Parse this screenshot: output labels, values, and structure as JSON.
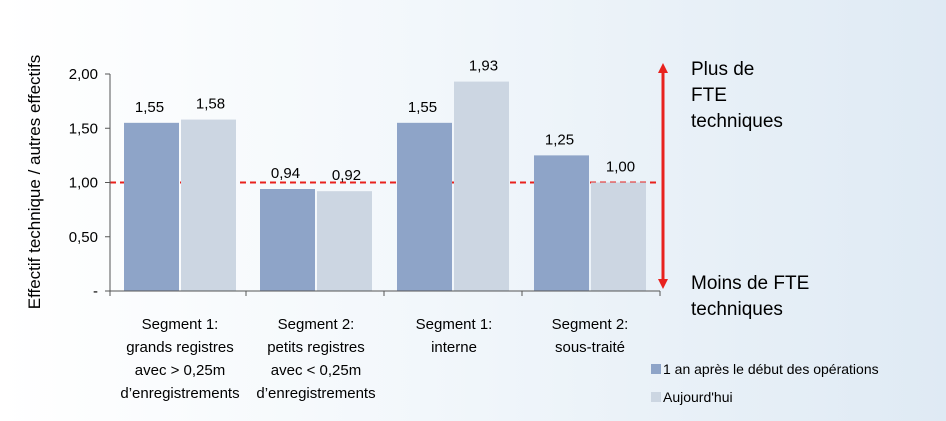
{
  "chart_data": {
    "type": "bar",
    "ylabel": "Effectif technique / autres effectifs",
    "ylim": [
      0,
      2.0
    ],
    "yticks": [
      {
        "value": 0,
        "label": "-"
      },
      {
        "value": 0.5,
        "label": "0,50"
      },
      {
        "value": 1.0,
        "label": "1,00"
      },
      {
        "value": 1.5,
        "label": "1,50"
      },
      {
        "value": 2.0,
        "label": "2,00"
      }
    ],
    "categories": [
      [
        "Segment 1:",
        "grands registres",
        "avec > 0,25m",
        "d’enregistrements"
      ],
      [
        "Segment 2:",
        "petits registres",
        "avec < 0,25m",
        "d’enregistrements"
      ],
      [
        "Segment 1:",
        "interne"
      ],
      [
        "Segment 2:",
        "sous-traité"
      ]
    ],
    "series": [
      {
        "name": "1 an après le début des opérations",
        "color": "#8ea4c8",
        "values": [
          1.55,
          0.94,
          1.55,
          1.25
        ],
        "labels": [
          "1,55",
          "0,94",
          "1,55",
          "1,25"
        ]
      },
      {
        "name": "Aujourd'hui",
        "color": "#ccd6e2",
        "values": [
          1.58,
          0.92,
          1.93,
          1.0
        ],
        "labels": [
          "1,58",
          "0,92",
          "1,93",
          "1,00"
        ]
      }
    ],
    "reference_line": {
      "value": 1.0,
      "color": "#e8221e",
      "style": "dashed"
    },
    "annotations": {
      "up": [
        "Plus de",
        "FTE",
        "techniques"
      ],
      "down": [
        "Moins de  FTE",
        "techniques"
      ],
      "arrow_color": "#e8221e"
    },
    "legend": "bottom-right",
    "grid": false
  }
}
